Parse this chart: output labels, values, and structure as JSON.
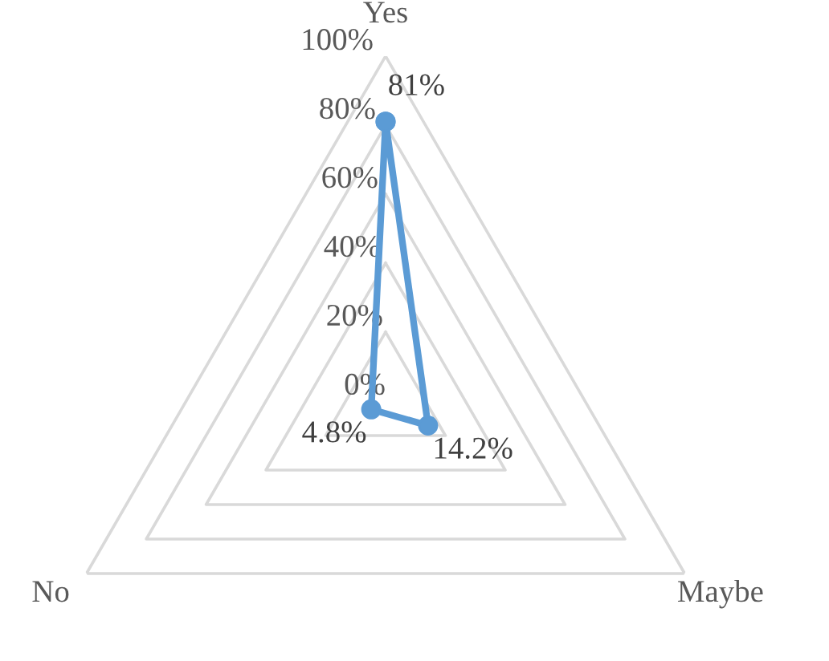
{
  "chart_data": {
    "type": "radar",
    "categories": [
      "Yes",
      "Maybe",
      "No"
    ],
    "series": [
      {
        "color": "#5b9bd5",
        "values": [
          81,
          14.2,
          4.8
        ],
        "value_labels": [
          "81%",
          "14.2%",
          "4.8%"
        ]
      }
    ],
    "ylim": [
      0,
      100
    ],
    "yticks": [
      {
        "value": 0,
        "label": "0%"
      },
      {
        "value": 20,
        "label": "20%"
      },
      {
        "value": 40,
        "label": "40%"
      },
      {
        "value": 60,
        "label": "60%"
      },
      {
        "value": 80,
        "label": "80%"
      },
      {
        "value": 100,
        "label": "100%"
      }
    ],
    "grid": true,
    "marker": "circle",
    "line_style": "solid"
  }
}
